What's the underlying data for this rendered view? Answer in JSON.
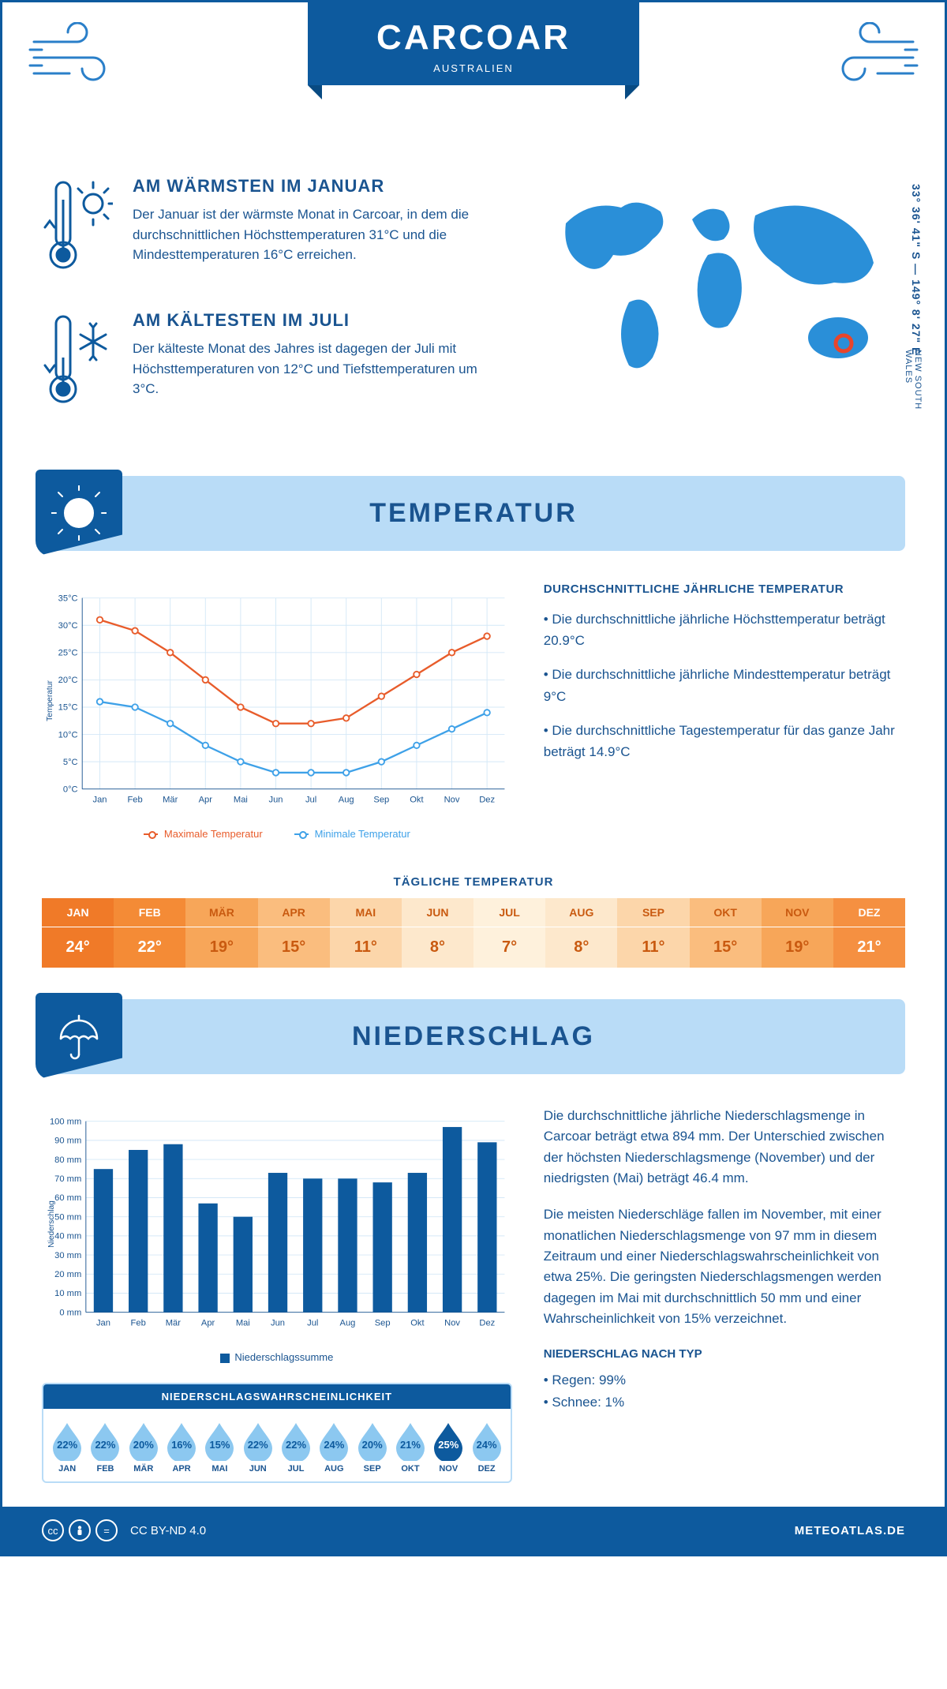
{
  "header": {
    "city": "CARCOAR",
    "country": "AUSTRALIEN",
    "coords": "33° 36' 41\" S — 149° 8' 27\" E",
    "region": "NEW SOUTH WALES"
  },
  "intro": {
    "warm": {
      "title": "AM WÄRMSTEN IM JANUAR",
      "text": "Der Januar ist der wärmste Monat in Carcoar, in dem die durchschnittlichen Höchsttemperaturen 31°C und die Mindesttemperaturen 16°C erreichen."
    },
    "cold": {
      "title": "AM KÄLTESTEN IM JULI",
      "text": "Der kälteste Monat des Jahres ist dagegen der Juli mit Höchsttemperaturen von 12°C und Tiefsttemperaturen um 3°C."
    }
  },
  "temperature": {
    "section_title": "TEMPERATUR",
    "chart": {
      "type": "line",
      "months": [
        "Jan",
        "Feb",
        "Mär",
        "Apr",
        "Mai",
        "Jun",
        "Jul",
        "Aug",
        "Sep",
        "Okt",
        "Nov",
        "Dez"
      ],
      "max_series": {
        "label": "Maximale Temperatur",
        "color": "#e85c2b",
        "values": [
          31,
          29,
          25,
          20,
          15,
          12,
          12,
          13,
          17,
          21,
          25,
          28
        ]
      },
      "min_series": {
        "label": "Minimale Temperatur",
        "color": "#3ea1e8",
        "values": [
          16,
          15,
          12,
          8,
          5,
          3,
          3,
          3,
          5,
          8,
          11,
          14
        ]
      },
      "y_axis": {
        "label": "Temperatur",
        "min": 0,
        "max": 35,
        "step": 5,
        "suffix": "°C"
      },
      "grid_color": "#d4e8f7",
      "axis_color": "#1a5490"
    },
    "summary": {
      "title": "DURCHSCHNITTLICHE JÄHRLICHE TEMPERATUR",
      "bullets": [
        "Die durchschnittliche jährliche Höchsttemperatur beträgt 20.9°C",
        "Die durchschnittliche jährliche Mindesttemperatur beträgt 9°C",
        "Die durchschnittliche Tagestemperatur für das ganze Jahr beträgt 14.9°C"
      ]
    },
    "daily": {
      "title": "TÄGLICHE TEMPERATUR",
      "months": [
        "JAN",
        "FEB",
        "MÄR",
        "APR",
        "MAI",
        "JUN",
        "JUL",
        "AUG",
        "SEP",
        "OKT",
        "NOV",
        "DEZ"
      ],
      "values": [
        "24°",
        "22°",
        "19°",
        "15°",
        "11°",
        "8°",
        "7°",
        "8°",
        "11°",
        "15°",
        "19°",
        "21°"
      ],
      "colors": [
        "#f07a28",
        "#f48b36",
        "#f7a659",
        "#fabd7e",
        "#fcd6aa",
        "#fde8cc",
        "#fef1dc",
        "#fde8cc",
        "#fcd6aa",
        "#fabd7e",
        "#f7a659",
        "#f59041"
      ],
      "text_color_dark": "#c95a10",
      "text_color_light": "#ffffff"
    }
  },
  "precipitation": {
    "section_title": "NIEDERSCHLAG",
    "chart": {
      "type": "bar",
      "months": [
        "Jan",
        "Feb",
        "Mär",
        "Apr",
        "Mai",
        "Jun",
        "Jul",
        "Aug",
        "Sep",
        "Okt",
        "Nov",
        "Dez"
      ],
      "values": [
        75,
        85,
        88,
        57,
        50,
        73,
        70,
        70,
        68,
        73,
        97,
        89
      ],
      "bar_color": "#0d5a9e",
      "y_axis": {
        "label": "Niederschlag",
        "min": 0,
        "max": 100,
        "step": 10,
        "suffix": " mm"
      },
      "grid_color": "#d4e8f7",
      "legend_label": "Niederschlagssumme"
    },
    "paragraphs": [
      "Die durchschnittliche jährliche Niederschlagsmenge in Carcoar beträgt etwa 894 mm. Der Unterschied zwischen der höchsten Niederschlagsmenge (November) und der niedrigsten (Mai) beträgt 46.4 mm.",
      "Die meisten Niederschläge fallen im November, mit einer monatlichen Niederschlagsmenge von 97 mm in diesem Zeitraum und einer Niederschlagswahrscheinlichkeit von etwa 25%. Die geringsten Niederschlagsmengen werden dagegen im Mai mit durchschnittlich 50 mm und einer Wahrscheinlichkeit von 15% verzeichnet."
    ],
    "by_type": {
      "title": "NIEDERSCHLAG NACH TYP",
      "items": [
        "Regen: 99%",
        "Schnee: 1%"
      ]
    },
    "probability": {
      "title": "NIEDERSCHLAGSWAHRSCHEINLICHKEIT",
      "months": [
        "JAN",
        "FEB",
        "MÄR",
        "APR",
        "MAI",
        "JUN",
        "JUL",
        "AUG",
        "SEP",
        "OKT",
        "NOV",
        "DEZ"
      ],
      "values": [
        "22%",
        "22%",
        "20%",
        "16%",
        "15%",
        "22%",
        "22%",
        "24%",
        "20%",
        "21%",
        "25%",
        "24%"
      ],
      "highlight_index": 10,
      "drop_color": "#8cc8f0",
      "drop_highlight_color": "#0d5a9e"
    }
  },
  "footer": {
    "license": "CC BY-ND 4.0",
    "site": "METEOATLAS.DE"
  },
  "palette": {
    "primary": "#0d5a9e",
    "light": "#b9dcf7",
    "text": "#1a5490"
  }
}
